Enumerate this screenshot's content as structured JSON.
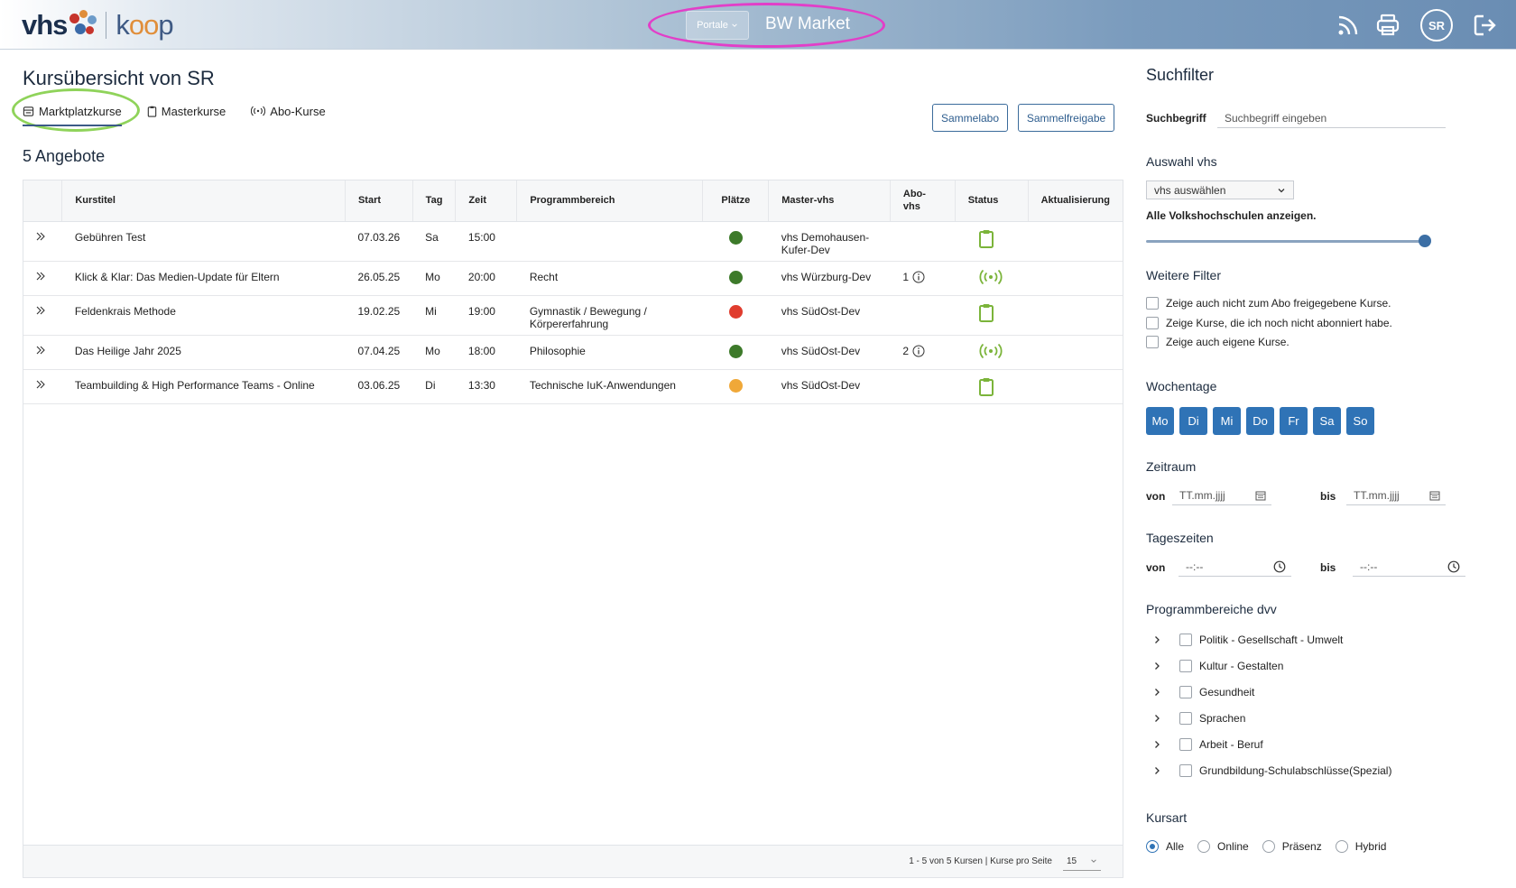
{
  "header": {
    "logo_left": "vhs",
    "logo_right_a": "k",
    "logo_right_b": "oo",
    "logo_right_c": "p",
    "portale_label": "Portale",
    "portal_name": "BW Market",
    "avatar_initials": "SR",
    "colors": {
      "highlight_portal": "#e23ec8",
      "highlight_tab": "#8fd35a"
    }
  },
  "main": {
    "title": "Kursübersicht von SR",
    "tabs": [
      {
        "label": "Marktplatzkurse",
        "icon": "store-icon"
      },
      {
        "label": "Masterkurse",
        "icon": "clipboard-icon"
      },
      {
        "label": "Abo-Kurse",
        "icon": "broadcast-icon"
      }
    ],
    "buttons": {
      "sammelabo": "Sammelabo",
      "sammelfreigabe": "Sammelfreigabe"
    },
    "count_label": "5 Angebote",
    "table": {
      "headers": [
        "Kurstitel",
        "Start",
        "Tag",
        "Zeit",
        "Programmbereich",
        "Plätze",
        "Master-vhs",
        "Abo-",
        "vhs",
        "Status",
        "Aktualisierung"
      ],
      "rows": [
        {
          "title": "Gebühren Test",
          "start": "07.03.26",
          "tag": "Sa",
          "zeit": "15:00",
          "programm": "",
          "plaetze": "#3d7a2a",
          "master": "vhs Demohausen-Kufer-Dev",
          "abo": "",
          "status": "clipboard"
        },
        {
          "title": "Klick & Klar: Das Medien-Update für Eltern",
          "start": "26.05.25",
          "tag": "Mo",
          "zeit": "20:00",
          "programm": "Recht",
          "plaetze": "#3d7a2a",
          "master": "vhs Würzburg-Dev",
          "abo": "1",
          "status": "broadcast"
        },
        {
          "title": "Feldenkrais Methode",
          "start": "19.02.25",
          "tag": "Mi",
          "zeit": "19:00",
          "programm": "Gymnastik / Bewegung / Körpererfahrung",
          "plaetze": "#e03c2e",
          "master": "vhs SüdOst-Dev",
          "abo": "",
          "status": "clipboard"
        },
        {
          "title": "Das Heilige Jahr 2025",
          "start": "07.04.25",
          "tag": "Mo",
          "zeit": "18:00",
          "programm": "Philosophie",
          "plaetze": "#3d7a2a",
          "master": "vhs SüdOst-Dev",
          "abo": "2",
          "status": "broadcast"
        },
        {
          "title": "Teambuilding & High Performance Teams - Online",
          "start": "03.06.25",
          "tag": "Di",
          "zeit": "13:30",
          "programm": "Technische IuK-Anwendungen",
          "plaetze": "#f0a838",
          "master": "vhs SüdOst-Dev",
          "abo": "",
          "status": "clipboard"
        }
      ]
    },
    "pagination": {
      "text": "1 - 5 von 5 Kursen | Kurse pro Seite",
      "per_page": "15"
    }
  },
  "sidebar": {
    "title": "Suchfilter",
    "search_label": "Suchbegriff",
    "search_placeholder": "Suchbegriff eingeben",
    "vhs_heading": "Auswahl vhs",
    "vhs_select": "vhs auswählen",
    "vhs_all": "Alle Volkshochschulen anzeigen.",
    "weitere_heading": "Weitere Filter",
    "weitere": [
      "Zeige auch nicht zum Abo freigegebene Kurse.",
      "Zeige Kurse, die ich noch nicht abonniert habe.",
      "Zeige auch eigene Kurse."
    ],
    "wochentage_heading": "Wochentage",
    "days": [
      "Mo",
      "Di",
      "Mi",
      "Do",
      "Fr",
      "Sa",
      "So"
    ],
    "zeitraum_heading": "Zeitraum",
    "von": "von",
    "bis": "bis",
    "date_placeholder": "TT.mm.jjjj",
    "tageszeiten_heading": "Tageszeiten",
    "time_placeholder": "--:--",
    "programm_heading": "Programmbereiche dvv",
    "programm": [
      "Politik - Gesellschaft - Umwelt",
      "Kultur - Gestalten",
      "Gesundheit",
      "Sprachen",
      "Arbeit - Beruf",
      "Grundbildung-Schulabschlüsse(Spezial)"
    ],
    "kursart_heading": "Kursart",
    "kursart": [
      "Alle",
      "Online",
      "Präsenz",
      "Hybrid"
    ]
  }
}
